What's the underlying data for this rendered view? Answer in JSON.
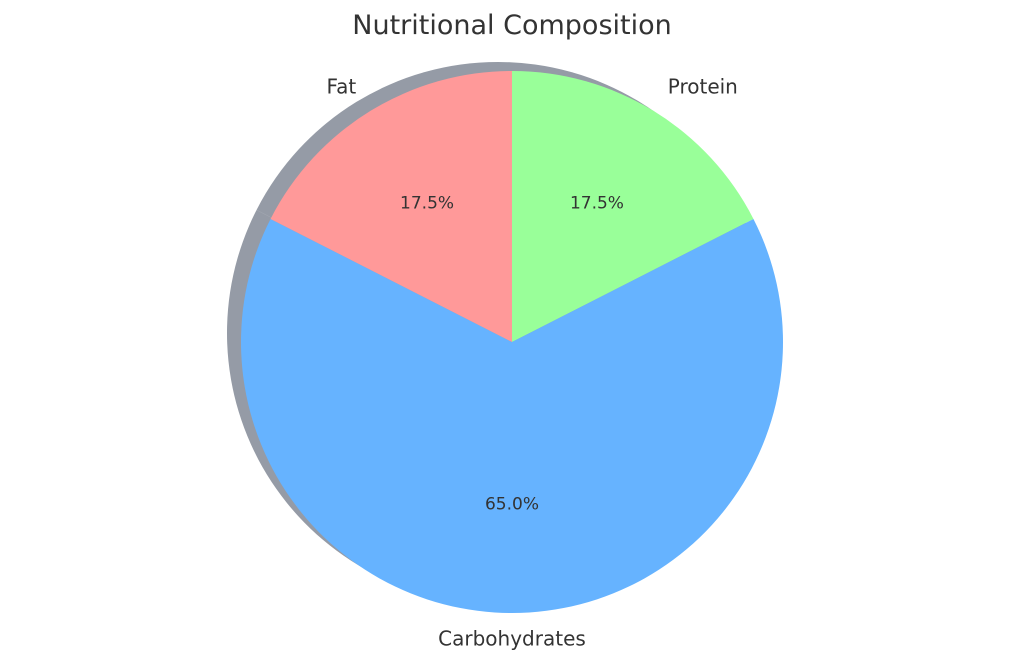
{
  "chart_data": {
    "type": "pie",
    "title": "Nutritional Composition",
    "labels": [
      "Protein",
      "Carbohydrates",
      "Fat"
    ],
    "values": [
      17.5,
      65.0,
      17.5
    ],
    "percent_labels": [
      "17.5%",
      "65.0%",
      "17.5%"
    ],
    "colors": [
      "#99ff99",
      "#66b3ff",
      "#ff9999"
    ],
    "start_angle_deg": 90,
    "direction": "clockwise",
    "shadow": true
  }
}
